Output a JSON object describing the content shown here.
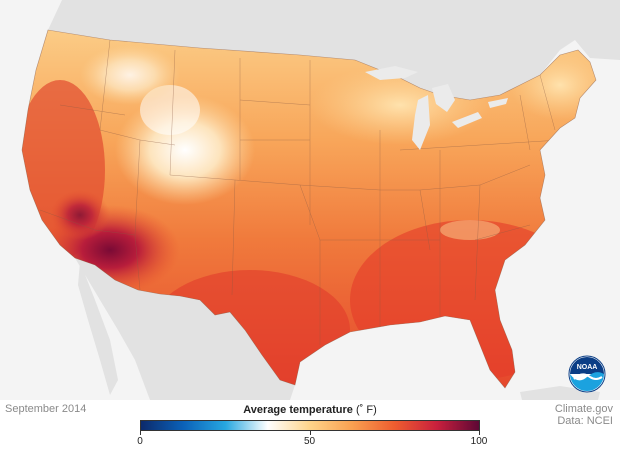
{
  "map": {
    "date": "September 2014",
    "legend_title": "Average temperature",
    "legend_unit": "(˚ F)",
    "legend_ticks": [
      "0",
      "50",
      "100"
    ],
    "legend_min": 0,
    "legend_max": 100,
    "colorscale": [
      "#0c2a6b",
      "#0b61b8",
      "#27a7e0",
      "#ffffff",
      "#ffd48a",
      "#f9a051",
      "#ee5d2f",
      "#c9203d",
      "#5e0835"
    ],
    "credit_line1": "Climate.gov",
    "credit_line2": "Data: NCEI",
    "logo_text": "NOAA"
  }
}
